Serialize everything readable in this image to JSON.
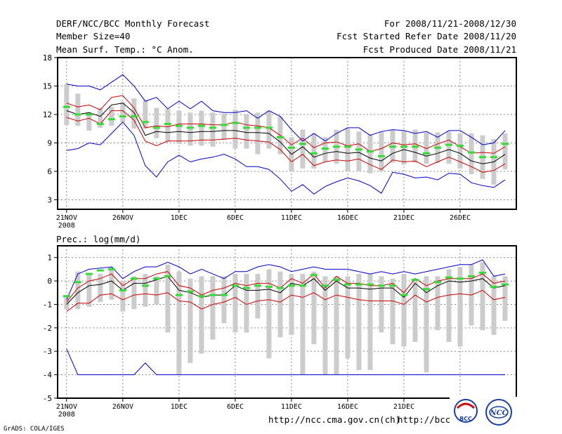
{
  "header": {
    "left": [
      "DERF/NCC/BCC Monthly Forecast",
      "Member Size=40",
      "Mean Surf. Temp.: °C Anom."
    ],
    "right": [
      "For 2008/11/21-2008/12/30",
      "Fcst Started Refer Date 2008/11/20",
      "Fcst Produced Date 2008/11/21"
    ]
  },
  "footer": {
    "credit": "GrADS: COLA/IGES",
    "url1": "http://ncc.cma.gov.cn(ch)",
    "url2": "http://bcc.",
    "logo1": "BCC",
    "logo2": "NCC"
  },
  "colors": {
    "ensemble": "#0000cc",
    "spread": "#cc0000",
    "mean": "#000000",
    "control": "#33dd33",
    "box": "#cccccc"
  },
  "chart_data": [
    {
      "type": "line",
      "title": "Mean Surf. Temp.: °C Anom.",
      "xlabel": "",
      "ylabel": "",
      "ylim": [
        2,
        18
      ],
      "yticks": [
        3,
        6,
        9,
        12,
        15,
        18
      ],
      "xlim": [
        -0.8,
        40
      ],
      "xticks": [
        {
          "day": 0,
          "label": "21NOV",
          "sub": "2008"
        },
        {
          "day": 5,
          "label": "26NOV"
        },
        {
          "day": 10,
          "label": "1DEC"
        },
        {
          "day": 15,
          "label": "6DEC"
        },
        {
          "day": 20,
          "label": "11DEC"
        },
        {
          "day": 25,
          "label": "16DEC"
        },
        {
          "day": 30,
          "label": "21DEC"
        },
        {
          "day": 35,
          "label": "26DEC"
        }
      ],
      "upper": [
        15.2,
        15,
        15,
        14.6,
        15.4,
        16.2,
        15,
        13.4,
        13.8,
        12.6,
        13.4,
        12.6,
        13.4,
        12.4,
        12.2,
        12.2,
        12.4,
        11.6,
        12.4,
        11.8,
        10.4,
        9.2,
        10,
        9.2,
        10,
        10.6,
        10.6,
        9.8,
        10.2,
        10.4,
        10.3,
        10,
        10.2,
        9.6,
        10.3,
        10.3,
        9.6,
        8.8,
        9,
        10.3
      ],
      "lower": [
        8.2,
        8.4,
        9,
        8.8,
        10,
        11.2,
        9.8,
        6.6,
        5.4,
        7,
        7.7,
        7,
        7.3,
        7.5,
        7.8,
        7.3,
        6.5,
        6.5,
        6.2,
        5.2,
        3.9,
        4.6,
        3.6,
        4.4,
        4.9,
        5.3,
        5,
        4.5,
        3.7,
        5.9,
        5.7,
        5.3,
        5.4,
        5.1,
        5.8,
        5.7,
        4.8,
        4.5,
        4.3,
        5.1
      ],
      "spread_upper": [
        13.2,
        12.8,
        13,
        12.5,
        13.8,
        14,
        12.7,
        10.6,
        10.8,
        10.7,
        11,
        11,
        11,
        10.9,
        10.9,
        11.2,
        10.9,
        10.8,
        10.6,
        9.8,
        8.8,
        9.5,
        8.5,
        9,
        9.1,
        8.7,
        8.9,
        8.1,
        8.4,
        9,
        8.8,
        8.9,
        8.4,
        8.9,
        9.3,
        8.6,
        7.9,
        8,
        7.9,
        8.6
      ],
      "spread_lower": [
        11.7,
        11.3,
        11.6,
        11,
        12.4,
        12.4,
        11.4,
        9.2,
        8.7,
        9.2,
        9.2,
        9.2,
        9.3,
        9.3,
        9.4,
        9.5,
        9.3,
        9.2,
        9.1,
        8.3,
        7,
        7.8,
        6.6,
        7,
        7.2,
        7.1,
        7.3,
        6.7,
        6.2,
        7.2,
        7,
        7.1,
        6.5,
        7,
        7.5,
        7,
        6.5,
        5.9,
        6.1,
        6.8
      ],
      "mean": [
        12.4,
        12,
        12.2,
        11.8,
        13,
        13.2,
        12.2,
        9.8,
        10.2,
        10.1,
        10.2,
        10.1,
        10.2,
        10.2,
        10.3,
        10.3,
        10.1,
        10.1,
        10,
        9.1,
        7.8,
        8.6,
        7.5,
        7.9,
        8.1,
        7.9,
        8,
        7.4,
        7.1,
        7.9,
        8.3,
        8,
        7.6,
        7.9,
        8.3,
        7.9,
        7.1,
        6.8,
        7,
        7.8
      ],
      "control": [
        12.8,
        12,
        12,
        11,
        11.5,
        11.8,
        11.8,
        11.2,
        10.6,
        11,
        10.8,
        10.6,
        10.8,
        10.6,
        10.9,
        11.1,
        10.6,
        10.6,
        10.6,
        9.6,
        8.5,
        8.9,
        7.9,
        8.4,
        8.6,
        8.6,
        8.3,
        8.1,
        7.6,
        8.6,
        8.6,
        8.6,
        7.9,
        8.5,
        8.8,
        8.7,
        8,
        7.5,
        7.5,
        8.9
      ],
      "box_top": [
        15.2,
        14.2,
        12.2,
        12.7,
        12.8,
        13.3,
        13.7,
        13.5,
        12.7,
        12.6,
        12.4,
        12.2,
        12.4,
        12.2,
        12.1,
        12.5,
        12,
        12.2,
        12.4,
        11.8,
        9.6,
        10.4,
        10,
        9.6,
        10.4,
        10.5,
        10.2,
        9.9,
        10.2,
        10.4,
        10.3,
        10.4,
        10.1,
        10.1,
        10.2,
        10,
        10,
        9.8,
        9.4,
        10
      ],
      "box_bottom": [
        10.9,
        10.8,
        10.3,
        10.6,
        10.8,
        11.2,
        10.5,
        10.5,
        9.5,
        9.1,
        8.9,
        8.7,
        8.7,
        8.6,
        9.3,
        8.4,
        8.4,
        7.8,
        8.4,
        7.8,
        6,
        6.3,
        6.3,
        7,
        6.8,
        6,
        6,
        5.8,
        6,
        6.9,
        6.7,
        6.9,
        6.8,
        6.9,
        6.8,
        6.3,
        5.7,
        5.2,
        4.6,
        6.2
      ]
    },
    {
      "type": "line",
      "title": "Prec.: log(mm/d)",
      "xlabel": "",
      "ylabel": "",
      "ylim": [
        -5,
        1.5
      ],
      "yticks": [
        -5,
        -4,
        -3,
        -2,
        -1,
        0,
        1
      ],
      "xlim": [
        -0.8,
        40
      ],
      "xticks": [
        {
          "day": 0,
          "label": "21NOV",
          "sub": "2008"
        },
        {
          "day": 5,
          "label": "26NOV"
        },
        {
          "day": 10,
          "label": "1DEC"
        },
        {
          "day": 15,
          "label": "6DEC"
        },
        {
          "day": 20,
          "label": "11DEC"
        },
        {
          "day": 25,
          "label": "16DEC"
        },
        {
          "day": 30,
          "label": "21DEC"
        },
        {
          "day": 35,
          "label": "26DEC"
        }
      ],
      "upper": [
        -0.8,
        0.3,
        0.5,
        0.55,
        0.6,
        0.1,
        0.4,
        0.6,
        0.6,
        0.8,
        0.6,
        0.3,
        0.5,
        0.3,
        0.1,
        0.4,
        0.4,
        0.6,
        0.7,
        0.6,
        0.4,
        0.5,
        0.6,
        0.5,
        0.5,
        0.5,
        0.4,
        0.3,
        0.4,
        0.3,
        0.4,
        0.3,
        0.4,
        0.5,
        0.6,
        0.7,
        0.7,
        0.9,
        0.2,
        0.3
      ],
      "lower": [
        -2.9,
        -4,
        -4,
        -4,
        -4,
        -4,
        -4,
        -3.5,
        -4,
        -4,
        -4,
        -4,
        -4,
        -4,
        -4,
        -4,
        -4,
        -4,
        -4,
        -4,
        -4,
        -4,
        -4,
        -4,
        -4,
        -4,
        -4,
        -4,
        -4,
        -4,
        -4,
        -4,
        -4,
        -4,
        -4,
        -4,
        -4,
        -4,
        -4,
        -4
      ],
      "spread_upper": [
        -0.9,
        -0.3,
        0,
        0.1,
        0.3,
        -0.2,
        0.1,
        0.1,
        0.3,
        0.4,
        -0.2,
        -0.3,
        -0.6,
        -0.4,
        -0.3,
        -0.1,
        -0.2,
        -0.1,
        -0.1,
        -0.3,
        0.1,
        -0.1,
        0.3,
        -0.3,
        0.2,
        -0.1,
        -0.1,
        -0.2,
        -0.2,
        -0.1,
        -0.5,
        0.1,
        -0.2,
        0,
        0.1,
        0.1,
        0.1,
        0.3,
        -0.1,
        0
      ],
      "spread_lower": [
        -1.3,
        -0.95,
        -0.95,
        -0.6,
        -0.55,
        -0.8,
        -0.6,
        -0.55,
        -0.6,
        -0.5,
        -0.85,
        -0.9,
        -1.2,
        -1,
        -0.9,
        -0.7,
        -1,
        -0.85,
        -0.8,
        -0.9,
        -0.6,
        -0.7,
        -0.5,
        -0.8,
        -0.6,
        -0.7,
        -0.8,
        -0.85,
        -0.85,
        -0.85,
        -1,
        -0.6,
        -0.9,
        -0.7,
        -0.6,
        -0.55,
        -0.6,
        -0.4,
        -0.8,
        -0.7
      ],
      "mean": [
        -1,
        -0.5,
        -0.2,
        -0.15,
        0,
        -0.4,
        -0.1,
        -0.1,
        0.05,
        0.2,
        -0.4,
        -0.5,
        -0.7,
        -0.6,
        -0.6,
        -0.2,
        -0.4,
        -0.4,
        -0.35,
        -0.5,
        -0.1,
        -0.2,
        0.1,
        -0.4,
        0,
        -0.3,
        -0.3,
        -0.35,
        -0.3,
        -0.3,
        -0.7,
        -0.1,
        -0.5,
        -0.2,
        0,
        -0.05,
        0,
        0.1,
        -0.3,
        -0.2
      ],
      "control": [
        -0.65,
        -0.05,
        0.3,
        0.45,
        0.5,
        -0.4,
        0.1,
        -0.2,
        0.1,
        0.2,
        -0.6,
        -0.45,
        -0.65,
        -0.6,
        -0.6,
        -0.2,
        -0.3,
        -0.2,
        -0.25,
        -0.3,
        -0.2,
        -0.2,
        0.25,
        -0.2,
        0.05,
        -0.15,
        -0.15,
        -0.15,
        -0.2,
        -0.2,
        -0.6,
        0.05,
        -0.35,
        -0.05,
        0.15,
        0.1,
        0.2,
        0.35,
        -0.25,
        -0.15
      ],
      "box_top": [
        -0.7,
        0.4,
        0.3,
        0.3,
        0.6,
        0,
        0.2,
        0.3,
        0.2,
        0.7,
        0.4,
        0.1,
        0.2,
        0.2,
        0.2,
        0.3,
        0.3,
        0.3,
        0.5,
        0.4,
        0.3,
        0.3,
        0.4,
        0.2,
        0.2,
        0.2,
        0.3,
        0.3,
        0.2,
        0.1,
        0.3,
        0,
        0.2,
        0.2,
        0.5,
        0.6,
        0.7,
        0.8,
        0.2,
        0.2
      ],
      "box_bottom": [
        -1.2,
        -1.2,
        -1.1,
        -0.9,
        -0.8,
        -1.3,
        -1.2,
        -1.1,
        -1,
        -2.2,
        -4,
        -3.5,
        -3.1,
        -2.5,
        -1.8,
        -2.2,
        -2.2,
        -1.6,
        -3.3,
        -2.4,
        -2.3,
        -4,
        -2.7,
        -4,
        -4,
        -3.3,
        -3.8,
        -3.8,
        -2.2,
        -2.7,
        -2.8,
        -2.6,
        -3.9,
        -2.1,
        -2.6,
        -2.8,
        -1.9,
        -2.1,
        -2.3,
        -1.7
      ]
    }
  ]
}
